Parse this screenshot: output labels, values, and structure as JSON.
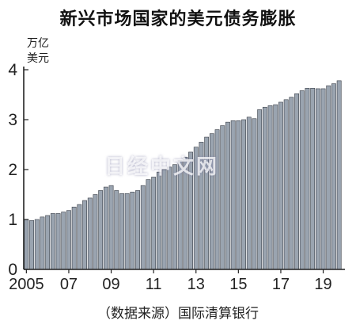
{
  "title": "新兴市场国家的美元债务膨胀",
  "unit_label": [
    "万亿",
    "美元"
  ],
  "source": "（数据来源）国际清算银行",
  "watermark": "日经中文网",
  "chart_data": {
    "type": "bar",
    "title": "新兴市场国家的美元债务膨胀",
    "ylabel": "万亿美元",
    "xlabel": "",
    "ylim": [
      0,
      4
    ],
    "yticks": [
      0,
      1,
      2,
      3,
      4
    ],
    "xtick_labels": [
      "2005",
      "07",
      "09",
      "11",
      "13",
      "15",
      "17",
      "19"
    ],
    "bar_color": "#9aa4b0",
    "grid": false,
    "values": [
      1.0,
      0.98,
      1.0,
      1.05,
      1.08,
      1.12,
      1.12,
      1.15,
      1.18,
      1.25,
      1.3,
      1.38,
      1.43,
      1.5,
      1.58,
      1.65,
      1.68,
      1.58,
      1.52,
      1.52,
      1.55,
      1.58,
      1.68,
      1.8,
      1.85,
      1.95,
      2.0,
      2.05,
      2.1,
      2.18,
      2.25,
      2.35,
      2.45,
      2.55,
      2.65,
      2.72,
      2.8,
      2.88,
      2.95,
      2.98,
      2.98,
      3.0,
      3.05,
      3.02,
      3.2,
      3.25,
      3.28,
      3.3,
      3.35,
      3.4,
      3.45,
      3.52,
      3.58,
      3.63,
      3.63,
      3.62,
      3.62,
      3.68,
      3.72,
      3.78
    ]
  }
}
